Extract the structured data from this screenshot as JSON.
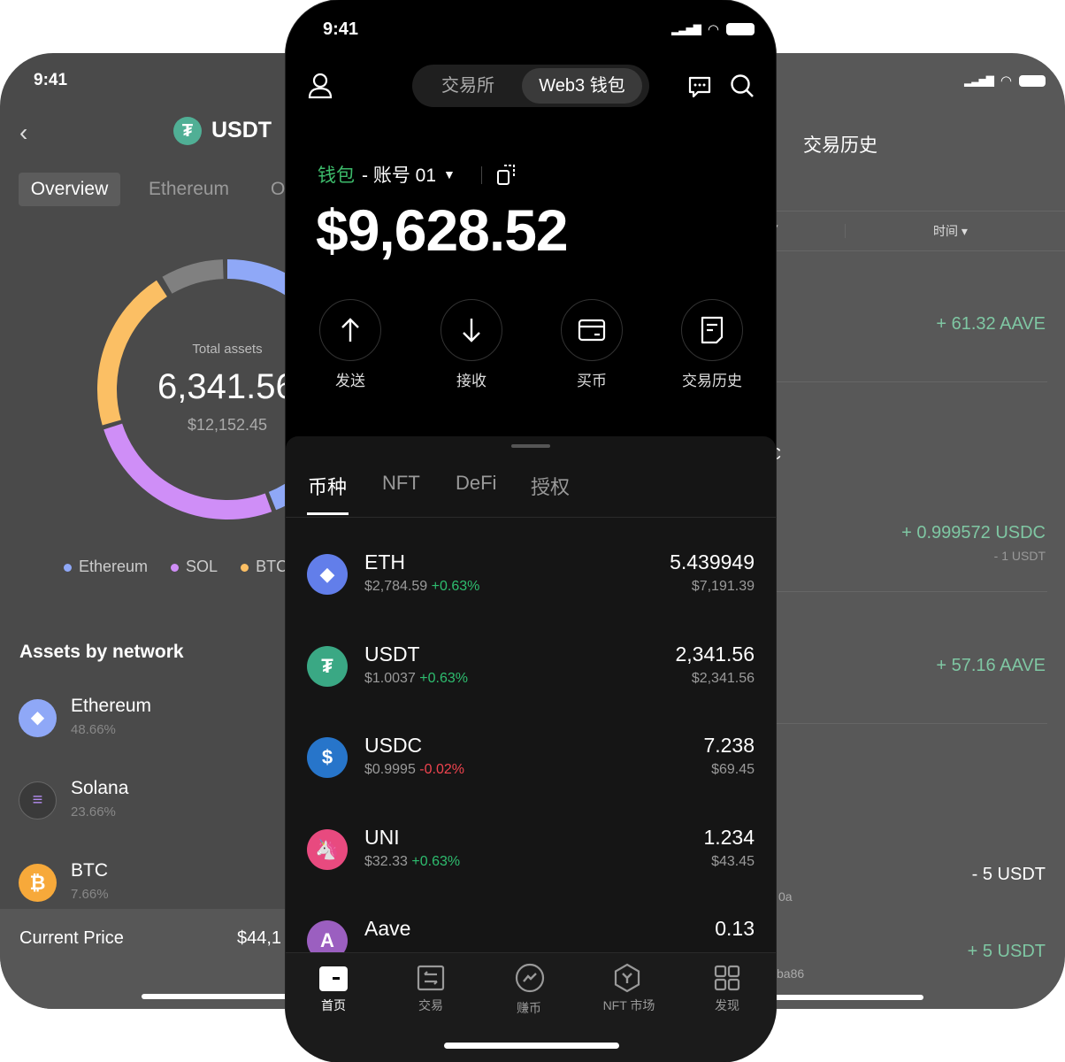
{
  "left": {
    "time": "9:41",
    "title": "USDT",
    "tabs": [
      "Overview",
      "Ethereum",
      "O"
    ],
    "total_label": "Total assets",
    "total_value": "6,341.56",
    "total_usd": "$12,152.45",
    "legend": [
      {
        "label": "Ethereum",
        "color": "#8fa8f7"
      },
      {
        "label": "SOL",
        "color": "#cf8ef7"
      },
      {
        "label": "BTC",
        "color": "#fbbf64"
      }
    ],
    "other_color": "#808080",
    "section_title": "Assets by network",
    "networks": [
      {
        "name": "Ethereum",
        "pct": "48.66%"
      },
      {
        "name": "Solana",
        "pct": "23.66%"
      },
      {
        "name": "BTC",
        "pct": "7.66%"
      }
    ],
    "current_price_label": "Current Price",
    "current_price_value": "$44,1"
  },
  "right": {
    "title": "交易历史",
    "filter_time": "时间",
    "items": [
      {
        "amount": "+ 61.32 AAVE",
        "sub": ""
      },
      {
        "amount": "+ 0.999572 USDC",
        "sub": "- 1 USDT"
      },
      {
        "amount": "+ 57.16 AAVE",
        "sub": ""
      },
      {
        "amount": "- 5 USDT",
        "sub": ""
      },
      {
        "amount": "+ 5 USDT",
        "sub": ""
      }
    ],
    "fragments": {
      "c": "C",
      "addr1": "0a",
      "addr2": "ba86"
    }
  },
  "mid": {
    "time": "9:41",
    "mode_tabs": [
      "交易所",
      "Web3 钱包"
    ],
    "wallet_label": "钱包",
    "account": "- 账号 01",
    "balance": "$9,628.52",
    "actions": [
      "发送",
      "接收",
      "买币",
      "交易历史"
    ],
    "asset_tabs": [
      "币种",
      "NFT",
      "DeFi",
      "授权"
    ],
    "coins": [
      {
        "symbol": "ETH",
        "price": "$2,784.59",
        "change": "+0.63%",
        "amount": "5.439949",
        "value": "$7,191.39",
        "color": "#627eea"
      },
      {
        "symbol": "USDT",
        "price": "$1.0037",
        "change": "+0.63%",
        "amount": "2,341.56",
        "value": "$2,341.56",
        "color": "#3aa884"
      },
      {
        "symbol": "USDC",
        "price": "$0.9995",
        "change": "-0.02%",
        "amount": "7.238",
        "value": "$69.45",
        "color": "#2775ca"
      },
      {
        "symbol": "UNI",
        "price": "$32.33",
        "change": "+0.63%",
        "amount": "1.234",
        "value": "$43.45",
        "color": "#e84a7f"
      },
      {
        "symbol": "Aave",
        "price": "",
        "change": "",
        "amount": "0.13",
        "value": "",
        "color": "#9b5fc0"
      }
    ],
    "tabbar": [
      "首页",
      "交易",
      "赚币",
      "NFT 市场",
      "发现"
    ]
  }
}
